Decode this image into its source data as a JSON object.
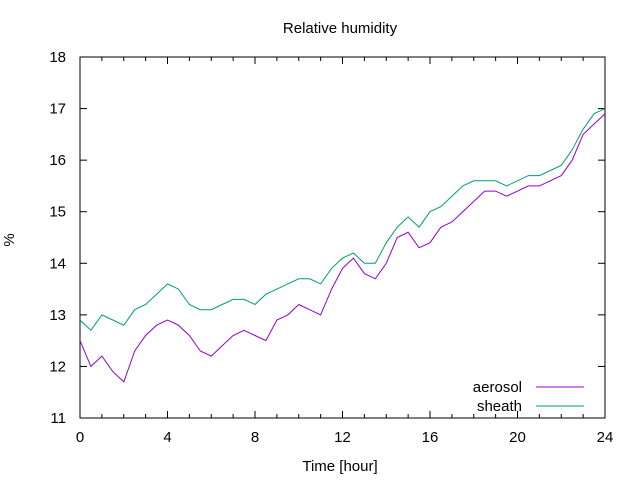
{
  "chart_data": {
    "type": "line",
    "title": "Relative humidity",
    "xlabel": "Time [hour]",
    "ylabel": "%",
    "xlim": [
      0,
      24
    ],
    "ylim": [
      11,
      18
    ],
    "xticks": [
      0,
      4,
      8,
      12,
      16,
      20,
      24
    ],
    "yticks": [
      11,
      12,
      13,
      14,
      15,
      16,
      17,
      18
    ],
    "grid": false,
    "legend_position": "bottom-right",
    "series": [
      {
        "name": "aerosol",
        "color": "#9400d3",
        "x": [
          0,
          0.5,
          1,
          1.5,
          2,
          2.5,
          3,
          3.5,
          4,
          4.5,
          5,
          5.5,
          6,
          6.5,
          7,
          7.5,
          8,
          8.5,
          9,
          9.5,
          10,
          10.5,
          11,
          11.5,
          12,
          12.5,
          13,
          13.5,
          14,
          14.5,
          15,
          15.5,
          16,
          16.5,
          17,
          17.5,
          18,
          18.5,
          19,
          19.5,
          20,
          20.5,
          21,
          21.5,
          22,
          22.5,
          23,
          23.5,
          24
        ],
        "values": [
          12.5,
          12.0,
          12.2,
          11.9,
          11.7,
          12.3,
          12.6,
          12.8,
          12.9,
          12.8,
          12.6,
          12.3,
          12.2,
          12.4,
          12.6,
          12.7,
          12.6,
          12.5,
          12.9,
          13.0,
          13.2,
          13.1,
          13.0,
          13.5,
          13.9,
          14.1,
          13.8,
          13.7,
          14.0,
          14.5,
          14.6,
          14.3,
          14.4,
          14.7,
          14.8,
          15.0,
          15.2,
          15.4,
          15.4,
          15.3,
          15.4,
          15.5,
          15.5,
          15.6,
          15.7,
          16.0,
          16.5,
          16.7,
          16.9
        ]
      },
      {
        "name": "sheath",
        "color": "#009e73",
        "x": [
          0,
          0.5,
          1,
          1.5,
          2,
          2.5,
          3,
          3.5,
          4,
          4.5,
          5,
          5.5,
          6,
          6.5,
          7,
          7.5,
          8,
          8.5,
          9,
          9.5,
          10,
          10.5,
          11,
          11.5,
          12,
          12.5,
          13,
          13.5,
          14,
          14.5,
          15,
          15.5,
          16,
          16.5,
          17,
          17.5,
          18,
          18.5,
          19,
          19.5,
          20,
          20.5,
          21,
          21.5,
          22,
          22.5,
          23,
          23.5,
          24
        ],
        "values": [
          12.9,
          12.7,
          13.0,
          12.9,
          12.8,
          13.1,
          13.2,
          13.4,
          13.6,
          13.5,
          13.2,
          13.1,
          13.1,
          13.2,
          13.3,
          13.3,
          13.2,
          13.4,
          13.5,
          13.6,
          13.7,
          13.7,
          13.6,
          13.9,
          14.1,
          14.2,
          14.0,
          14.0,
          14.4,
          14.7,
          14.9,
          14.7,
          15.0,
          15.1,
          15.3,
          15.5,
          15.6,
          15.6,
          15.6,
          15.5,
          15.6,
          15.7,
          15.7,
          15.8,
          15.9,
          16.2,
          16.6,
          16.9,
          17.0
        ]
      }
    ]
  }
}
